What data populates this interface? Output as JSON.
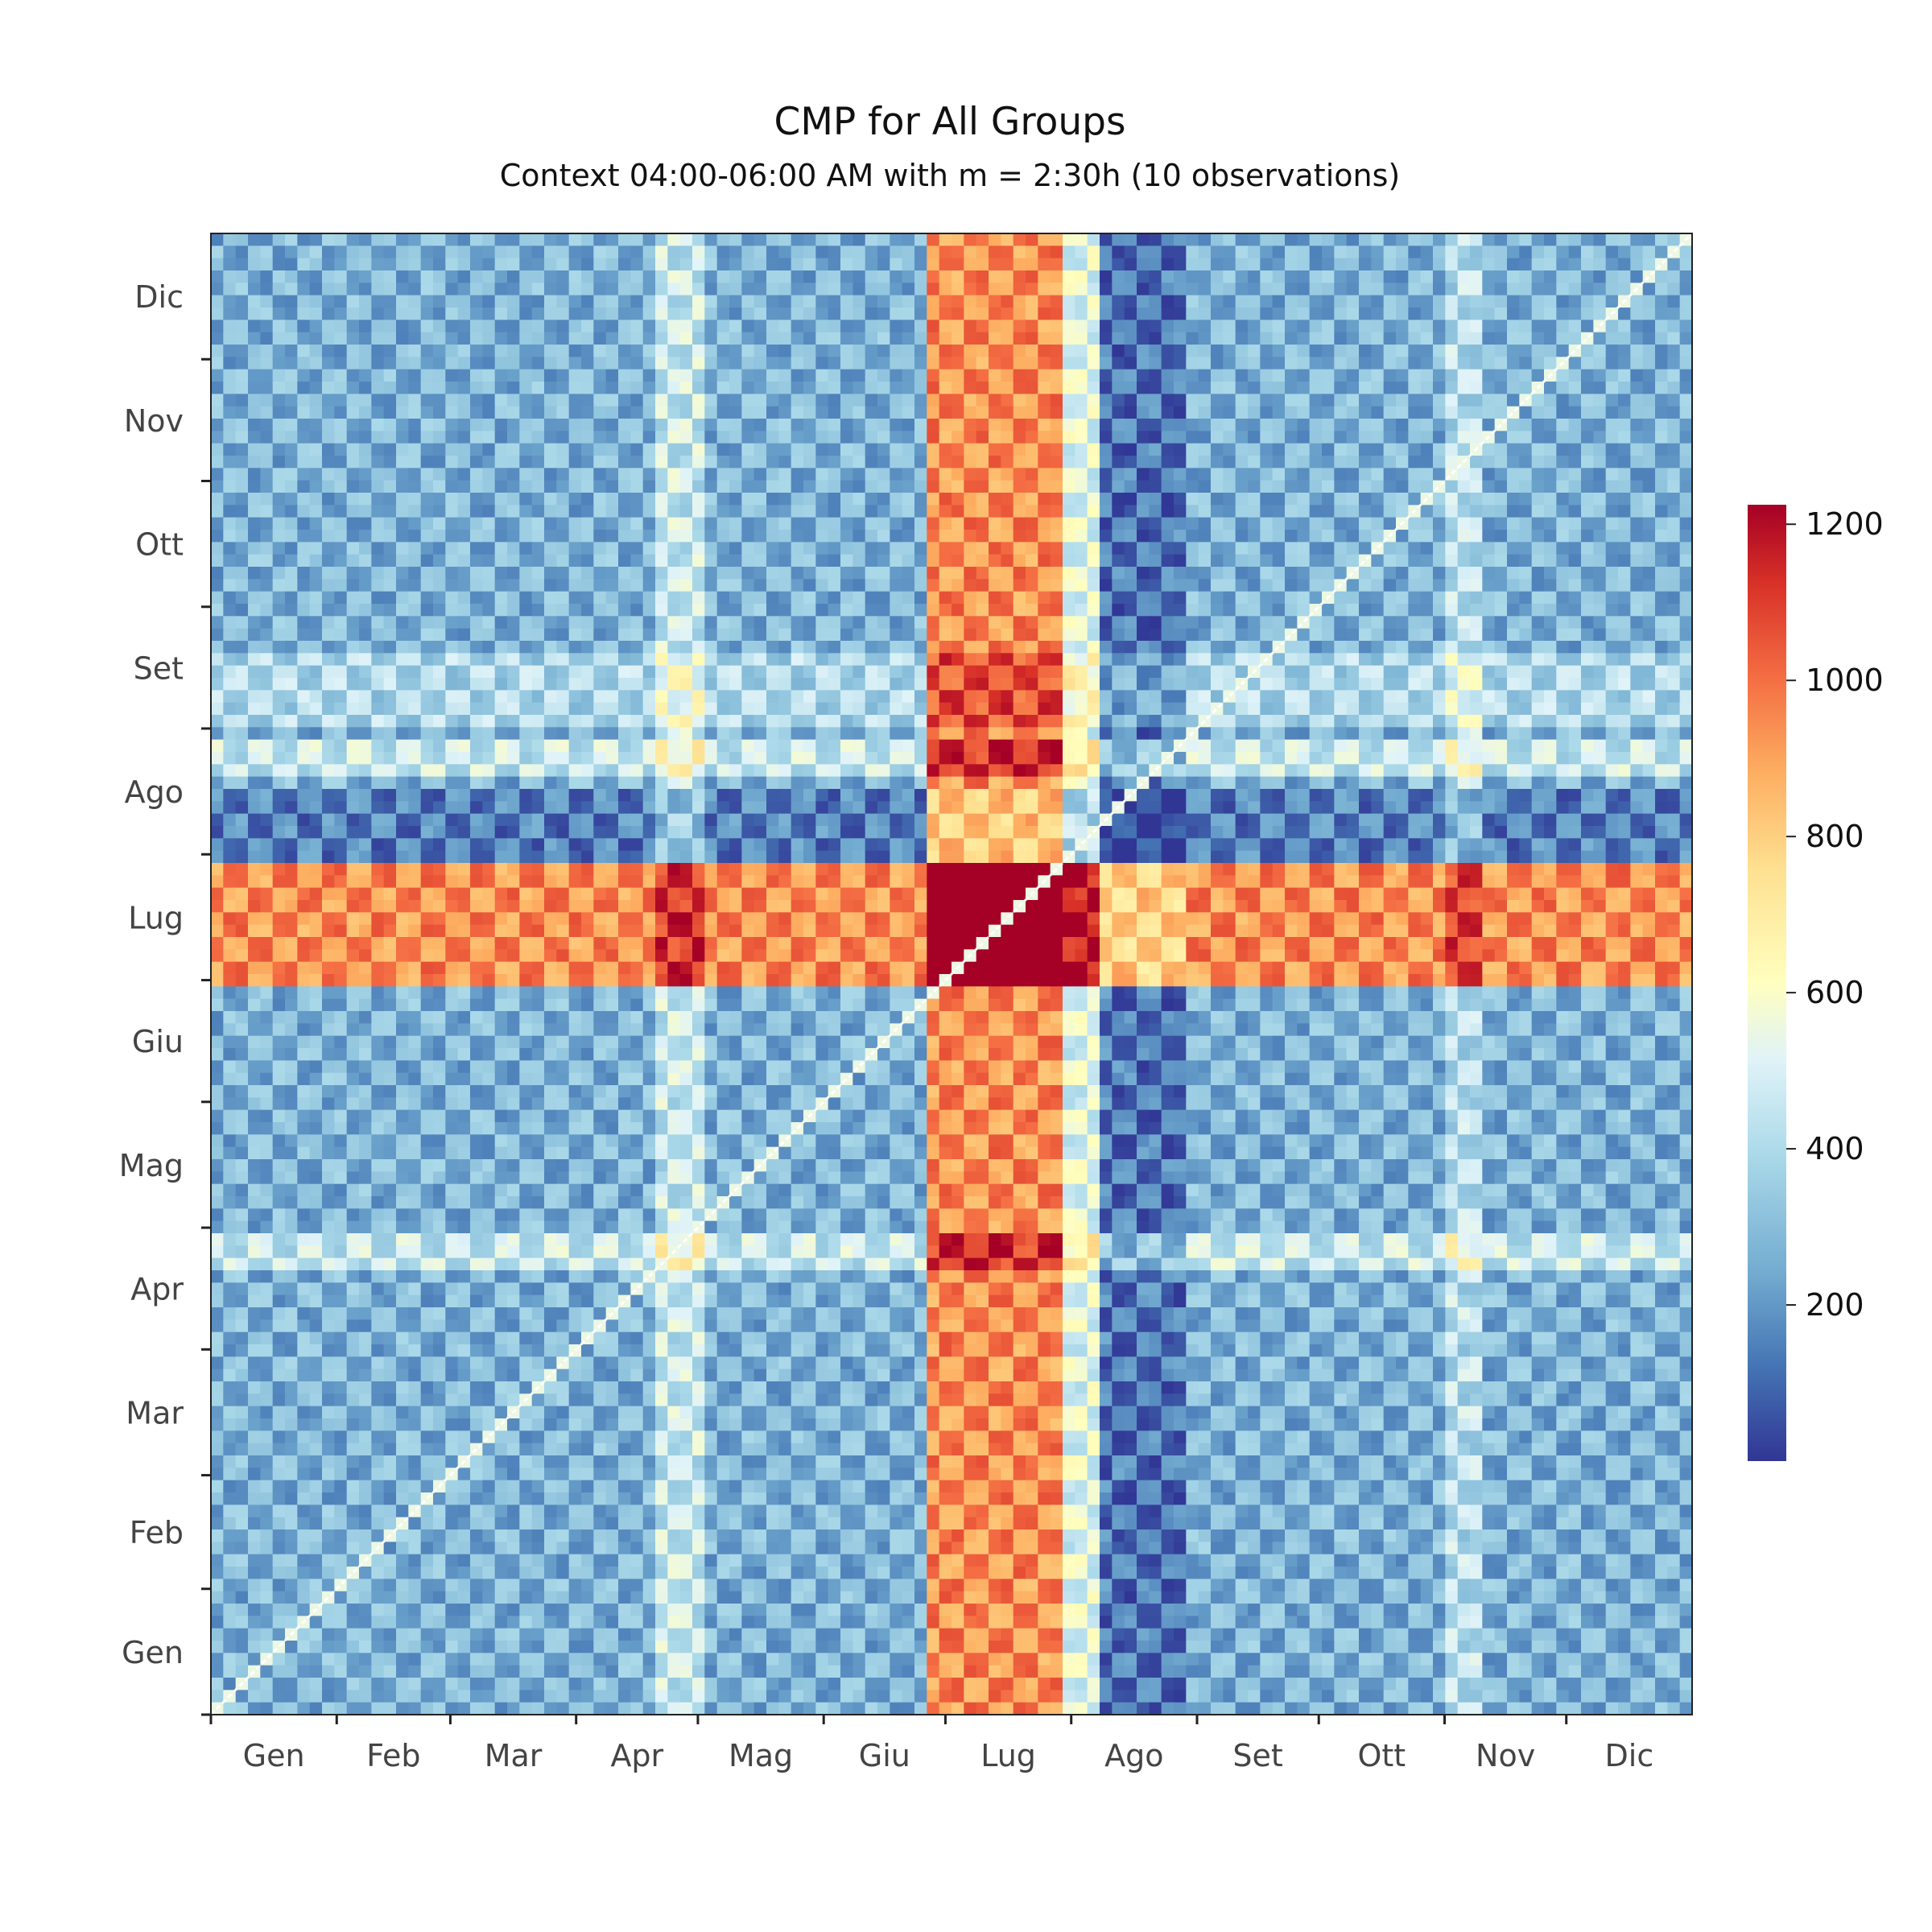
{
  "chart_data": {
    "type": "heatmap",
    "title": "CMP for All Groups",
    "subtitle": "Context 04:00-06:00 AM with m = 2:30h (10 observations)",
    "xlabel": "",
    "ylabel": "",
    "x_tick_labels": [
      "Gen",
      "Feb",
      "Mar",
      "Apr",
      "Mag",
      "Giu",
      "Lug",
      "Ago",
      "Set",
      "Ott",
      "Nov",
      "Dic"
    ],
    "y_tick_labels": [
      "Gen",
      "Feb",
      "Mar",
      "Apr",
      "Mag",
      "Giu",
      "Lug",
      "Ago",
      "Set",
      "Ott",
      "Nov",
      "Dic"
    ],
    "colorbar": {
      "ticks": [
        200,
        400,
        600,
        800,
        1000,
        1200
      ],
      "range": [
        0,
        1225
      ],
      "colorscale": [
        "#313695",
        "#4575b4",
        "#74add1",
        "#abd9e9",
        "#e0f3f8",
        "#ffffbf",
        "#fee090",
        "#fdae61",
        "#f46d43",
        "#d73027",
        "#a50026"
      ]
    },
    "diagonal": "white",
    "structure": {
      "grid": "day x day, Jan 1 to Dec 31",
      "weekly_pattern": "checkerboard of high and low values with weekly period",
      "high_value_bands": [
        {
          "axis": "x",
          "from": "Jul",
          "to": "Ago",
          "peak": 1200
        },
        {
          "axis": "y",
          "from": "Lug",
          "to": "Ago",
          "peak": 1200
        }
      ],
      "low_value_bands": [
        {
          "axis": "x",
          "from": "Apr",
          "to": "Mag"
        },
        {
          "axis": "x",
          "from": "Ago",
          "to": "Set"
        }
      ]
    }
  }
}
